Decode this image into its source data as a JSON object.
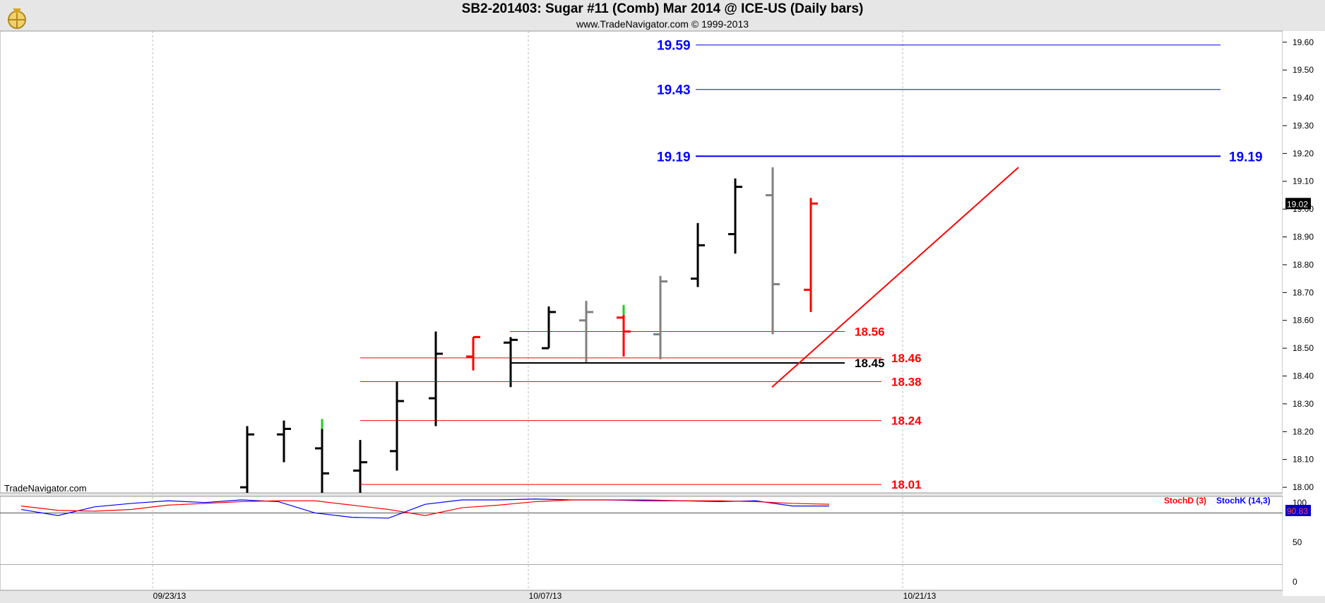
{
  "header": {
    "title": "SB2-201403:  Sugar #11 (Comb) Mar 2014 @ ICE-US  (Daily bars)",
    "subtitle": "www.TradeNavigator.com © 1999-2013"
  },
  "watermark": "TradeNavigator.com",
  "colors": {
    "up": "#000000",
    "down": "#ff0000",
    "neutral": "#808080",
    "fib": "#0000ff",
    "stochK": "#0000ff",
    "stochD": "#ff0000"
  },
  "chart_data": [
    {
      "type": "ohlc",
      "title": "SB2-201403:  Sugar #11 (Comb) Mar 2014 @ ICE-US  (Daily bars)",
      "ylim": [
        17.98,
        19.64
      ],
      "y_ticks": [
        "19.60",
        "19.50",
        "19.40",
        "19.30",
        "19.20",
        "19.10",
        "19.00",
        "18.90",
        "18.80",
        "18.70",
        "18.60",
        "18.50",
        "18.40",
        "18.30",
        "18.20",
        "18.10",
        "18.00"
      ],
      "x_ticks": [
        "09/23/13",
        "10/07/13",
        "10/21/13"
      ],
      "last_price": "19.02",
      "bars": [
        {
          "o": 18.0,
          "h": 18.22,
          "l": 17.9,
          "c": 18.19,
          "color": "black"
        },
        {
          "o": 18.19,
          "h": 18.24,
          "l": 18.09,
          "c": 18.21,
          "color": "black"
        },
        {
          "o": 18.14,
          "h": 18.21,
          "l": 17.9,
          "c": 18.05,
          "color": "black",
          "tick_color": "green"
        },
        {
          "o": 18.06,
          "h": 18.17,
          "l": 17.95,
          "c": 18.09,
          "color": "black"
        },
        {
          "o": 18.13,
          "h": 18.38,
          "l": 18.06,
          "c": 18.31,
          "color": "black"
        },
        {
          "o": 18.32,
          "h": 18.56,
          "l": 18.22,
          "c": 18.48,
          "color": "black"
        },
        {
          "o": 18.47,
          "h": 18.54,
          "l": 18.42,
          "c": 18.54,
          "color": "red"
        },
        {
          "o": 18.52,
          "h": 18.54,
          "l": 18.36,
          "c": 18.53,
          "color": "black"
        },
        {
          "o": 18.5,
          "h": 18.65,
          "l": 18.5,
          "c": 18.63,
          "color": "black"
        },
        {
          "o": 18.6,
          "h": 18.67,
          "l": 18.45,
          "c": 18.63,
          "color": "gray"
        },
        {
          "o": 18.61,
          "h": 18.62,
          "l": 18.47,
          "c": 18.56,
          "color": "red",
          "tick_color": "green"
        },
        {
          "o": 18.55,
          "h": 18.76,
          "l": 18.46,
          "c": 18.74,
          "color": "gray"
        },
        {
          "o": 18.75,
          "h": 18.95,
          "l": 18.72,
          "c": 18.87,
          "color": "black"
        },
        {
          "o": 18.91,
          "h": 19.11,
          "l": 18.84,
          "c": 19.08,
          "color": "black"
        },
        {
          "o": 19.05,
          "h": 19.15,
          "l": 18.55,
          "c": 18.73,
          "color": "gray"
        },
        {
          "o": 18.71,
          "h": 19.04,
          "l": 18.63,
          "c": 19.02,
          "color": "red"
        }
      ],
      "fib_levels": [
        {
          "label": "19.59",
          "value": 19.59,
          "style": "thin"
        },
        {
          "label": "19.43",
          "value": 19.43,
          "style": "thin"
        },
        {
          "label": "19.19",
          "value": 19.19,
          "style": "thick",
          "right_label": "19.19"
        }
      ],
      "support_levels": [
        {
          "label": "18.56",
          "value": 18.56,
          "color": "red"
        },
        {
          "label": "18.46",
          "value": 18.465,
          "color": "red"
        },
        {
          "label": "18.45",
          "value": 18.447,
          "color": "black"
        },
        {
          "label": "18.38",
          "value": 18.38,
          "color": "red"
        },
        {
          "label": "18.24",
          "value": 18.24,
          "color": "red"
        },
        {
          "label": "18.01",
          "value": 18.01,
          "color": "red"
        }
      ],
      "trendline": {
        "from": {
          "bar": 7,
          "value": 18.36
        },
        "to": {
          "bar": 14,
          "value": 19.15
        }
      }
    },
    {
      "type": "line",
      "title": "",
      "ylim": [
        0,
        100
      ],
      "y_ticks": [
        "100",
        "50",
        "0"
      ],
      "legend": [
        "StochD (3)",
        "StochK (14,3)"
      ],
      "last_value": "90.83",
      "series": [
        {
          "name": "StochK (14,3)",
          "values": [
            89,
            82,
            92,
            96,
            99,
            97,
            100,
            98,
            85,
            80,
            79,
            95,
            100,
            100,
            101,
            100,
            100,
            99,
            99,
            98,
            99,
            93,
            93
          ]
        },
        {
          "name": "StochD (3)",
          "values": [
            93,
            88,
            87,
            89,
            94,
            96,
            98,
            99,
            99,
            94,
            89,
            82,
            91,
            94,
            98,
            100,
            100,
            100,
            99,
            99,
            98,
            96,
            95
          ]
        }
      ],
      "reference_line": 85
    }
  ]
}
